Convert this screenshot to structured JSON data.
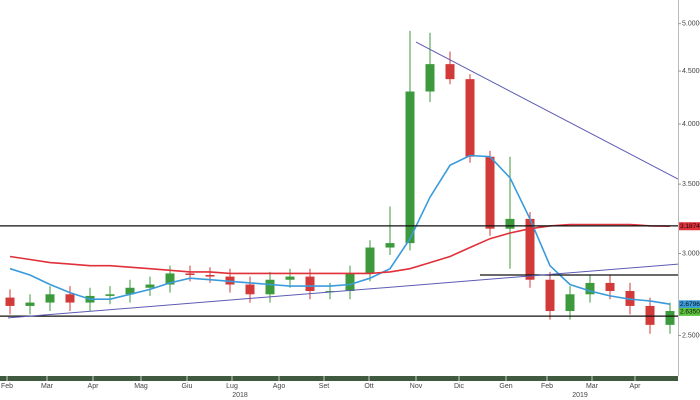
{
  "chart_data": {
    "type": "candlestick",
    "log_scale": true,
    "x": [
      0,
      1,
      2,
      3,
      4,
      5,
      6,
      7,
      8,
      9,
      10,
      11,
      12,
      13,
      14,
      15,
      16,
      17,
      18,
      19,
      20,
      21,
      22,
      23,
      24,
      25,
      26,
      27,
      28,
      29,
      30,
      31,
      32,
      33
    ],
    "open": [
      2.72,
      2.67,
      2.69,
      2.74,
      2.69,
      2.73,
      2.74,
      2.78,
      2.8,
      2.87,
      2.86,
      2.85,
      2.8,
      2.74,
      2.83,
      2.85,
      2.76,
      2.76,
      2.87,
      3.04,
      3.07,
      4.3,
      4.57,
      4.42,
      3.72,
      3.17,
      3.24,
      2.83,
      2.64,
      2.74,
      2.81,
      2.76,
      2.67,
      2.56
    ],
    "high": [
      2.77,
      2.74,
      2.79,
      2.79,
      2.78,
      2.79,
      2.83,
      2.85,
      2.92,
      2.92,
      2.91,
      2.9,
      2.85,
      2.88,
      2.9,
      2.9,
      2.81,
      2.92,
      3.09,
      3.33,
      4.92,
      4.9,
      4.7,
      4.47,
      3.77,
      3.72,
      3.29,
      2.88,
      2.79,
      2.86,
      2.86,
      2.81,
      2.72,
      2.69
    ],
    "low": [
      2.62,
      2.62,
      2.64,
      2.64,
      2.64,
      2.68,
      2.69,
      2.73,
      2.75,
      2.82,
      2.81,
      2.75,
      2.69,
      2.69,
      2.78,
      2.71,
      2.71,
      2.71,
      2.82,
      2.99,
      3.02,
      4.2,
      4.37,
      3.67,
      3.12,
      2.9,
      2.78,
      2.59,
      2.59,
      2.69,
      2.71,
      2.62,
      2.51,
      2.51
    ],
    "close": [
      2.67,
      2.69,
      2.74,
      2.69,
      2.73,
      2.74,
      2.78,
      2.8,
      2.87,
      2.86,
      2.85,
      2.8,
      2.74,
      2.83,
      2.85,
      2.76,
      2.76,
      2.87,
      3.04,
      3.07,
      4.3,
      4.57,
      4.42,
      3.72,
      3.17,
      3.24,
      2.83,
      2.64,
      2.74,
      2.81,
      2.76,
      2.67,
      2.56,
      2.64
    ],
    "up_color": "#3c9a3c",
    "down_color": "#d23a3a",
    "series": [
      {
        "color": "#3a9bdc",
        "values": [
          2.9,
          2.86,
          2.8,
          2.75,
          2.71,
          2.71,
          2.74,
          2.77,
          2.81,
          2.84,
          2.83,
          2.82,
          2.81,
          2.8,
          2.79,
          2.79,
          2.79,
          2.8,
          2.84,
          2.9,
          3.1,
          3.4,
          3.65,
          3.73,
          3.72,
          3.55,
          3.24,
          2.92,
          2.8,
          2.76,
          2.73,
          2.71,
          2.7,
          2.68
        ]
      },
      {
        "color": "#e0303a",
        "values": [
          2.98,
          2.96,
          2.94,
          2.93,
          2.92,
          2.92,
          2.91,
          2.9,
          2.89,
          2.88,
          2.88,
          2.87,
          2.87,
          2.87,
          2.87,
          2.87,
          2.87,
          2.87,
          2.87,
          2.88,
          2.9,
          2.94,
          2.98,
          3.04,
          3.1,
          3.14,
          3.17,
          3.19,
          3.2,
          3.2,
          3.2,
          3.2,
          3.19,
          3.1874
        ]
      }
    ],
    "hlines": [
      {
        "value": 3.19,
        "x": [
          -0.5,
          33.4
        ]
      },
      {
        "value": 2.86,
        "x": [
          23.5,
          33.4
        ]
      },
      {
        "value": 2.61,
        "x": [
          -0.5,
          33.4
        ]
      }
    ],
    "hline_color": "#111111",
    "trendlines": [
      {
        "x": [
          -0.1,
          33.4
        ],
        "values": [
          2.6,
          2.93
        ]
      },
      {
        "x": [
          20.3,
          33.4
        ],
        "values": [
          4.8,
          3.54
        ]
      }
    ],
    "trendline_color": "#5b5bb5",
    "last_labels": [
      {
        "value": 3.1874,
        "label": "3.1874",
        "color": "#e0303a"
      },
      {
        "value": 2.6796,
        "label": "2.6796",
        "color": "#3a9bdc"
      },
      {
        "value": 2.635,
        "label": "2.6350",
        "color": "#5cc23c"
      }
    ],
    "xlim": [
      -0.5,
      33.4
    ],
    "xticks": [
      {
        "value": -0.15,
        "label": "Feb"
      },
      {
        "value": 1.85,
        "label": "Mar"
      },
      {
        "value": 4.15,
        "label": "Apr"
      },
      {
        "value": 6.55,
        "label": "Mag"
      },
      {
        "value": 8.85,
        "label": "Giu"
      },
      {
        "value": 11.1,
        "label": "Lug"
      },
      {
        "value": 13.45,
        "label": "Ago"
      },
      {
        "value": 15.7,
        "label": "Set"
      },
      {
        "value": 17.95,
        "label": "Ott"
      },
      {
        "value": 20.3,
        "label": "Nov"
      },
      {
        "value": 22.45,
        "label": "Dic"
      },
      {
        "value": 24.8,
        "label": "Gen"
      },
      {
        "value": 26.85,
        "label": "Feb"
      },
      {
        "value": 29.1,
        "label": "Mar"
      },
      {
        "value": 31.25,
        "label": "Apr"
      }
    ],
    "x_year_ticks": [
      {
        "value": 11.5,
        "label": "2018"
      },
      {
        "value": 28.5,
        "label": "2019"
      }
    ],
    "ylim": [
      2.29,
      5.27
    ],
    "yticks": [
      {
        "value": 2.5,
        "label": "2.5000"
      },
      {
        "value": 3,
        "label": "3.0000"
      },
      {
        "value": 3.5,
        "label": "3.5000"
      },
      {
        "value": 4,
        "label": "4.0000"
      },
      {
        "value": 4.5,
        "label": "4.5000"
      },
      {
        "value": 5,
        "label": "5.0000"
      }
    ]
  }
}
